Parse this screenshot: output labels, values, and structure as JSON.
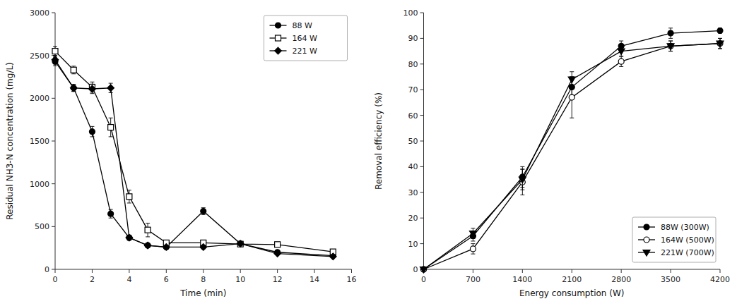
{
  "chart_data": [
    {
      "type": "line",
      "xlabel": "Time (min)",
      "ylabel": "Residual NH3-N concentration (mg/L)",
      "x": [
        0,
        1,
        2,
        3,
        4,
        5,
        6,
        8,
        10,
        12,
        15
      ],
      "xlim": [
        0,
        16
      ],
      "ylim": [
        0,
        3000
      ],
      "xticks": [
        0,
        2,
        4,
        6,
        8,
        10,
        12,
        14,
        16
      ],
      "yticks": [
        0,
        500,
        1000,
        1500,
        2000,
        2500,
        3000
      ],
      "grid": false,
      "legend": "upper right",
      "series": [
        {
          "name": "88 W",
          "color": "#000000",
          "marker": "circle",
          "values": [
            2430,
            2120,
            1610,
            650,
            370,
            280,
            260,
            680,
            300,
            200,
            160
          ],
          "errors": [
            50,
            40,
            60,
            50,
            30,
            20,
            20,
            40,
            25,
            20,
            15
          ]
        },
        {
          "name": "164 W",
          "color": "#000000",
          "marker": "open-square",
          "values": [
            2550,
            2330,
            2130,
            1660,
            850,
            460,
            310,
            310,
            295,
            290,
            205
          ],
          "errors": [
            55,
            45,
            60,
            110,
            75,
            80,
            20,
            20,
            20,
            20,
            15
          ]
        },
        {
          "name": "221 W",
          "color": "#000000",
          "marker": "diamond",
          "values": [
            2450,
            2120,
            2110,
            2120,
            370,
            280,
            260,
            260,
            300,
            185,
            150
          ],
          "errors": [
            50,
            40,
            55,
            55,
            30,
            20,
            20,
            20,
            20,
            15,
            12
          ]
        }
      ]
    },
    {
      "type": "line",
      "xlabel": "Energy consumption (W)",
      "ylabel": "Removal efficiency (%)",
      "x": [
        0,
        700,
        1400,
        2100,
        2800,
        3500,
        4200
      ],
      "xlim": [
        0,
        4200
      ],
      "ylim": [
        0,
        100
      ],
      "xticks": [
        0,
        700,
        1400,
        2100,
        2800,
        3500,
        4200
      ],
      "yticks": [
        0,
        10,
        20,
        30,
        40,
        50,
        60,
        70,
        80,
        90,
        100
      ],
      "grid": false,
      "legend": "lower right",
      "series": [
        {
          "name": "88W (300W)",
          "color": "#000000",
          "marker": "circle",
          "values": [
            0,
            13,
            36,
            71,
            87,
            92,
            93
          ],
          "errors": [
            0,
            2,
            4,
            4,
            2,
            2,
            1
          ]
        },
        {
          "name": "164W (500W)",
          "color": "#000000",
          "marker": "open-circle",
          "values": [
            0,
            8,
            34,
            67,
            81,
            87,
            88
          ],
          "errors": [
            0,
            2,
            5,
            8,
            2,
            2,
            2
          ]
        },
        {
          "name": "221W (700W)",
          "color": "#000000",
          "marker": "triangle-down",
          "values": [
            0,
            14,
            35,
            74,
            85,
            87,
            88
          ],
          "errors": [
            0,
            2,
            4,
            3,
            2,
            2,
            2
          ]
        }
      ]
    }
  ]
}
